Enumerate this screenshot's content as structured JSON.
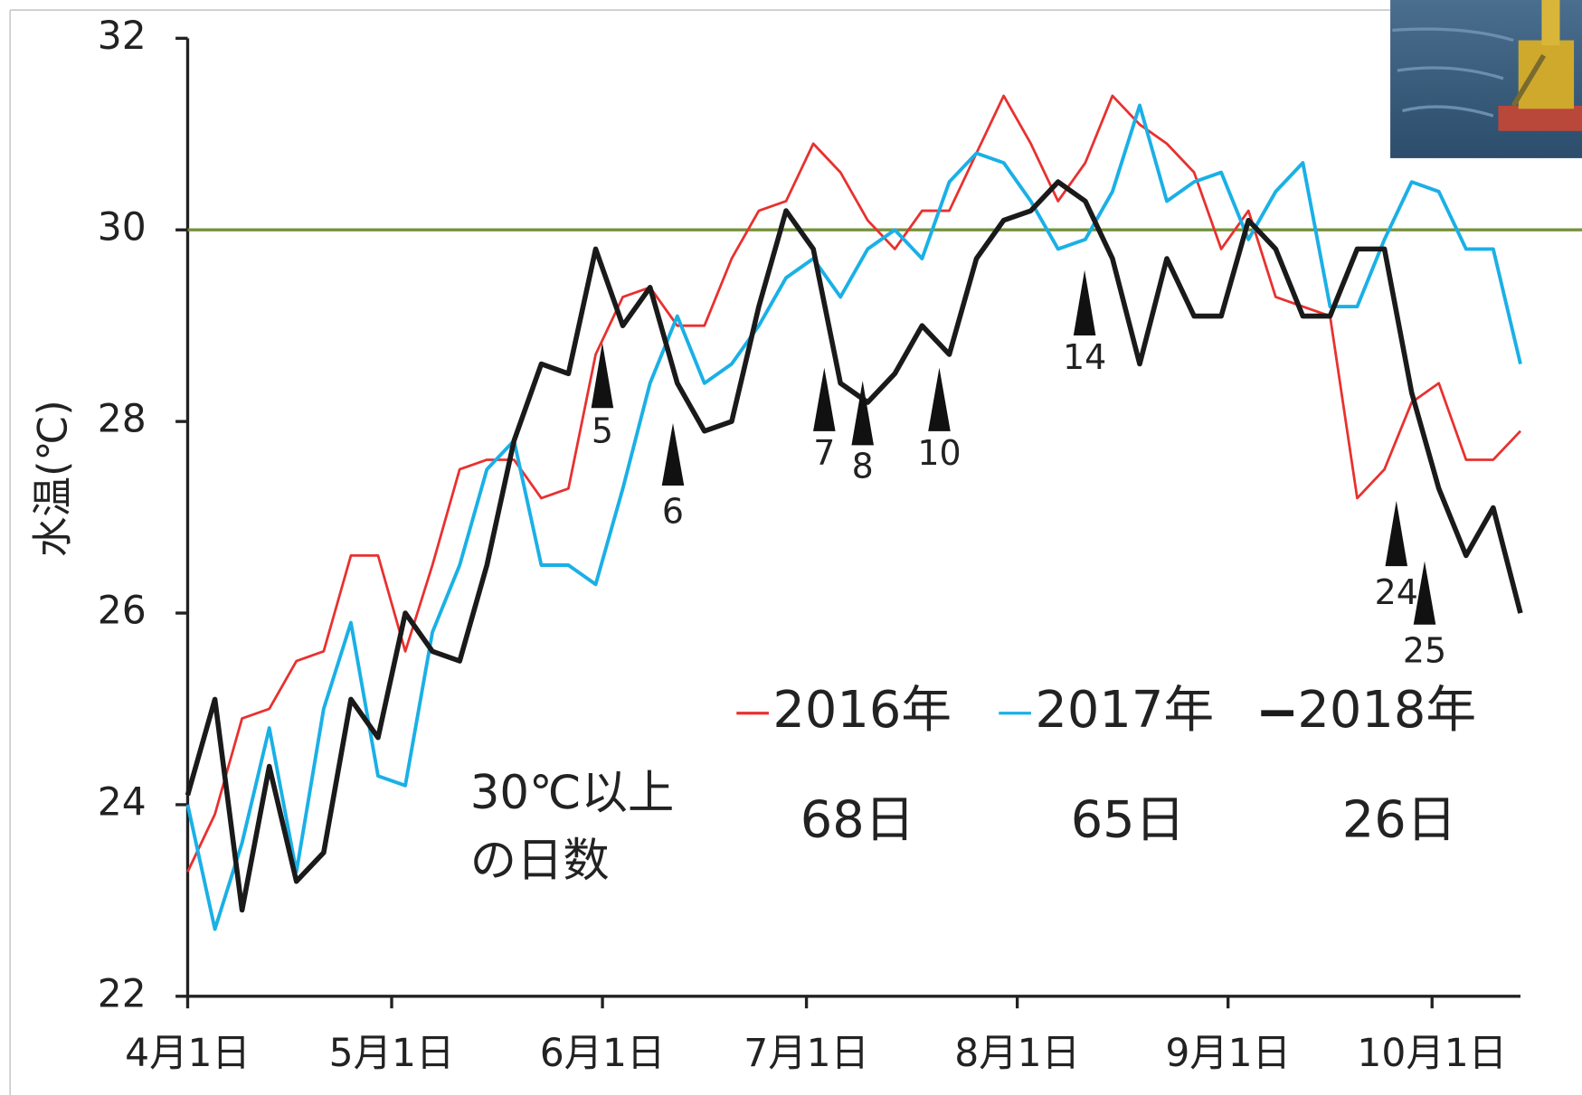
{
  "chart_data": {
    "type": "line",
    "y_label": "水温(℃)",
    "x": [
      0,
      4,
      8,
      12,
      16,
      20,
      24,
      28,
      32,
      36,
      40,
      44,
      48,
      52,
      56,
      60,
      64,
      68,
      72,
      76,
      80,
      84,
      88,
      92,
      96,
      100,
      104,
      108,
      112,
      116,
      120,
      124,
      128,
      132,
      136,
      140,
      144,
      148,
      152,
      156,
      160,
      164,
      168,
      172,
      176,
      180,
      184,
      188,
      192,
      196
    ],
    "xlim": [
      0,
      196
    ],
    "xticks": [
      {
        "value": 0,
        "label": "4月1日"
      },
      {
        "value": 30,
        "label": "5月1日"
      },
      {
        "value": 61,
        "label": "6月1日"
      },
      {
        "value": 91,
        "label": "7月1日"
      },
      {
        "value": 122,
        "label": "8月1日"
      },
      {
        "value": 153,
        "label": "9月1日"
      },
      {
        "value": 183,
        "label": "10月1日"
      }
    ],
    "ylim": [
      22,
      32
    ],
    "yticks": [
      22,
      24,
      26,
      28,
      30,
      32
    ],
    "hline": {
      "value": 30,
      "color": "#76923c"
    },
    "series": [
      {
        "name": "2016年",
        "color": "#e8312f",
        "values": [
          23.3,
          23.9,
          24.9,
          25.0,
          25.5,
          25.6,
          26.6,
          26.6,
          25.6,
          26.5,
          27.5,
          27.6,
          27.6,
          27.2,
          27.3,
          28.7,
          29.3,
          29.4,
          29.0,
          29.0,
          29.7,
          30.2,
          30.3,
          30.9,
          30.6,
          30.1,
          29.8,
          30.2,
          30.2,
          30.8,
          31.4,
          30.9,
          30.3,
          30.7,
          31.4,
          31.1,
          30.9,
          30.6,
          29.8,
          30.2,
          29.3,
          29.2,
          29.1,
          27.2,
          27.5,
          28.2,
          28.4,
          27.6,
          27.6,
          27.9
        ]
      },
      {
        "name": "2017年",
        "color": "#1ab0e6",
        "values": [
          24.0,
          22.7,
          23.6,
          24.8,
          23.3,
          25.0,
          25.9,
          24.3,
          24.2,
          25.8,
          26.5,
          27.5,
          27.8,
          26.5,
          26.5,
          26.3,
          27.3,
          28.4,
          29.1,
          28.4,
          28.6,
          29.0,
          29.5,
          29.7,
          29.3,
          29.8,
          30.0,
          29.7,
          30.5,
          30.8,
          30.7,
          30.3,
          29.8,
          29.9,
          30.4,
          31.3,
          30.3,
          30.5,
          30.6,
          29.9,
          30.4,
          30.7,
          29.2,
          29.2,
          29.9,
          30.5,
          30.4,
          29.8,
          29.8,
          28.6
        ]
      },
      {
        "name": "2018年",
        "color": "#1a1a1a",
        "values": [
          24.1,
          25.1,
          22.9,
          24.4,
          23.2,
          23.5,
          25.1,
          24.7,
          26.0,
          25.6,
          25.5,
          26.5,
          27.8,
          28.6,
          28.5,
          29.8,
          29.0,
          29.4,
          28.4,
          27.9,
          28.0,
          29.2,
          30.2,
          29.8,
          28.4,
          28.2,
          28.5,
          29.0,
          28.7,
          29.7,
          30.1,
          30.2,
          30.5,
          30.3,
          29.7,
          28.6,
          29.7,
          29.1,
          29.1,
          30.1,
          29.8,
          29.1,
          29.1,
          29.8,
          29.8,
          28.3,
          27.3,
          26.6,
          27.1,
          26.0
        ]
      }
    ],
    "markers": [
      "5",
      "6",
      "7",
      "8",
      "10",
      "14",
      "24",
      "25"
    ],
    "days_title": [
      "30℃以上",
      "の日数"
    ],
    "days": [
      "68日",
      "65日",
      "26日"
    ]
  }
}
